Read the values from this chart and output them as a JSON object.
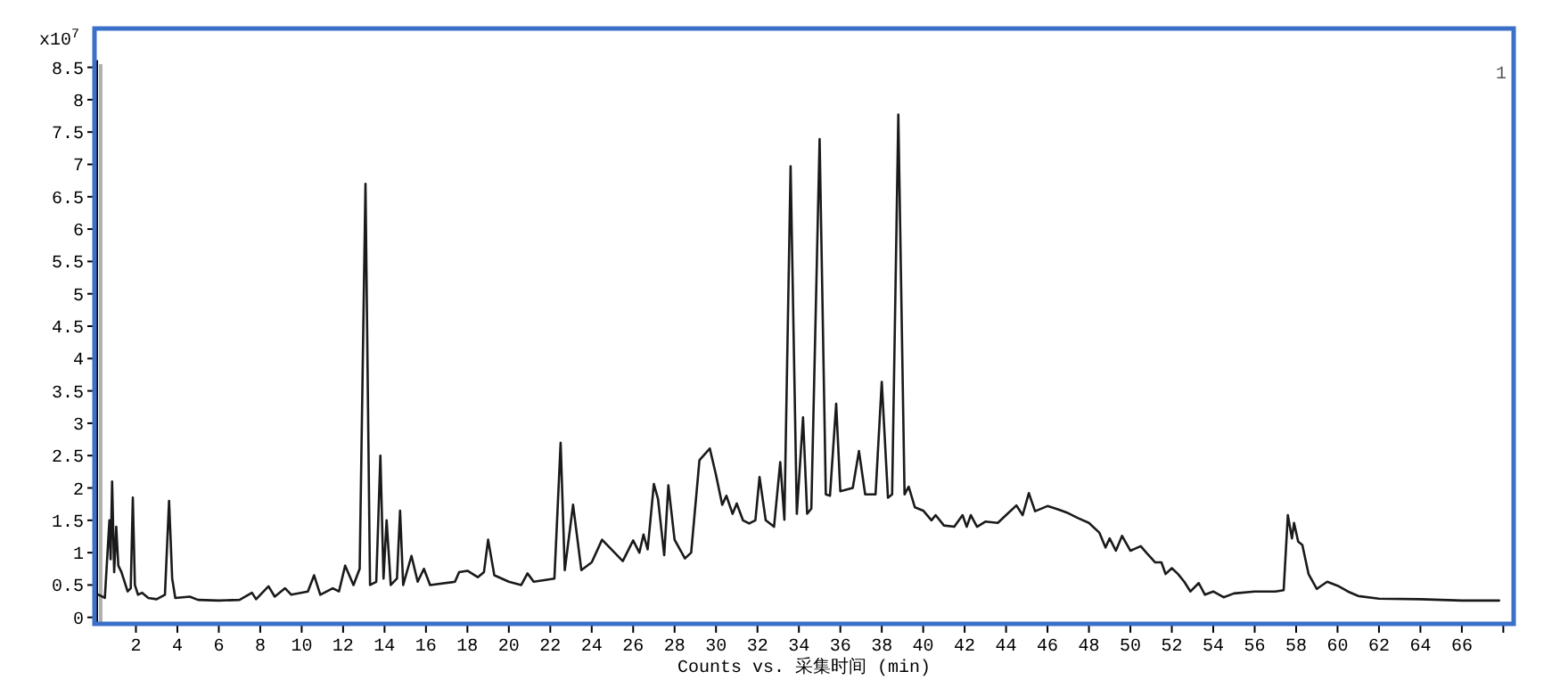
{
  "chart_data": {
    "type": "line",
    "xlabel": "Counts vs. 采集时间 (min)",
    "annotations": [
      "x10$^{7}$",
      "1"
    ],
    "xlim": [
      0,
      68.5
    ],
    "ylim": [
      -0.1,
      9.1
    ],
    "xticks": [
      2,
      4,
      6,
      8,
      10,
      12,
      14,
      16,
      18,
      20,
      22,
      24,
      26,
      28,
      30,
      32,
      34,
      36,
      38,
      40,
      42,
      44,
      46,
      48,
      50,
      52,
      54,
      56,
      58,
      60,
      62,
      64,
      66,
      {
        "value": 68,
        "label": null
      }
    ],
    "yticks": [
      0,
      0.5,
      1,
      1.5,
      2,
      2.5,
      3,
      3.5,
      4,
      4.5,
      5,
      5.5,
      6,
      6.5,
      7,
      7.5,
      8,
      8.5
    ],
    "grid": false,
    "marker": "none",
    "line_style": "solid",
    "ref_lines": [
      {
        "axis": "x",
        "value": 0.3,
        "label": null,
        "color": "#b0b0b0"
      }
    ],
    "series": [
      {
        "color": "#1a1a1a",
        "x": [
          0.2,
          0.5,
          0.72,
          0.78,
          0.85,
          0.95,
          1.05,
          1.15,
          1.3,
          1.6,
          1.75,
          1.85,
          1.95,
          2.1,
          2.3,
          2.6,
          3.0,
          3.4,
          3.6,
          3.75,
          3.9,
          4.6,
          5.0,
          6.0,
          7.0,
          7.6,
          7.8,
          8.4,
          8.7,
          9.2,
          9.5,
          10.3,
          10.6,
          10.9,
          11.5,
          11.8,
          12.1,
          12.5,
          12.8,
          13.08,
          13.3,
          13.6,
          13.8,
          13.95,
          14.1,
          14.3,
          14.6,
          14.75,
          14.9,
          15.3,
          15.6,
          15.9,
          16.2,
          17.4,
          17.6,
          18.0,
          18.5,
          18.8,
          19.0,
          19.3,
          20.0,
          20.6,
          20.9,
          21.2,
          22.2,
          22.5,
          22.7,
          23.1,
          23.5,
          24.0,
          24.5,
          25.5,
          26.0,
          26.3,
          26.5,
          26.7,
          27.0,
          27.2,
          27.5,
          27.7,
          28.0,
          28.5,
          28.8,
          29.2,
          29.7,
          30.0,
          30.3,
          30.5,
          30.8,
          31.0,
          31.3,
          31.6,
          31.9,
          32.1,
          32.4,
          32.8,
          33.1,
          33.3,
          33.6,
          33.9,
          34.2,
          34.4,
          34.6,
          35.0,
          35.3,
          35.5,
          35.8,
          36.0,
          36.6,
          36.9,
          37.2,
          37.7,
          38.0,
          38.3,
          38.5,
          38.8,
          39.1,
          39.3,
          39.6,
          40.0,
          40.4,
          40.6,
          41.0,
          41.5,
          41.9,
          42.1,
          42.3,
          42.6,
          43.0,
          43.6,
          44.0,
          44.5,
          44.8,
          45.1,
          45.4,
          46.0,
          46.5,
          47.0,
          47.5,
          48.0,
          48.5,
          48.8,
          49.0,
          49.3,
          49.6,
          50.0,
          50.5,
          50.8,
          51.2,
          51.5,
          51.7,
          52.0,
          52.3,
          52.6,
          52.9,
          53.3,
          53.6,
          54.0,
          54.5,
          55.0,
          56.0,
          57.0,
          57.4,
          57.6,
          57.8,
          57.9,
          58.1,
          58.3,
          58.6,
          59.0,
          59.5,
          60.0,
          60.5,
          61.0,
          62.0,
          64.0,
          66.0,
          67.8
        ],
        "values": [
          0.35,
          0.3,
          1.5,
          0.9,
          2.1,
          0.7,
          1.4,
          0.8,
          0.7,
          0.4,
          0.45,
          1.85,
          0.5,
          0.35,
          0.38,
          0.3,
          0.28,
          0.35,
          1.8,
          0.6,
          0.3,
          0.32,
          0.27,
          0.26,
          0.27,
          0.38,
          0.28,
          0.48,
          0.32,
          0.45,
          0.35,
          0.4,
          0.65,
          0.35,
          0.45,
          0.4,
          0.8,
          0.5,
          0.75,
          6.7,
          0.5,
          0.55,
          2.5,
          0.6,
          1.5,
          0.5,
          0.6,
          1.65,
          0.5,
          0.95,
          0.55,
          0.75,
          0.5,
          0.55,
          0.7,
          0.72,
          0.62,
          0.7,
          1.2,
          0.65,
          0.55,
          0.5,
          0.68,
          0.55,
          0.6,
          2.7,
          0.73,
          1.74,
          0.73,
          0.85,
          1.2,
          0.87,
          1.19,
          1.0,
          1.28,
          1.05,
          2.06,
          1.83,
          0.96,
          2.04,
          1.2,
          0.91,
          1.0,
          2.43,
          2.61,
          2.2,
          1.74,
          1.88,
          1.6,
          1.76,
          1.5,
          1.45,
          1.5,
          2.17,
          1.5,
          1.4,
          2.4,
          1.51,
          6.97,
          1.6,
          3.09,
          1.6,
          1.68,
          7.39,
          1.9,
          1.88,
          3.3,
          1.95,
          2.0,
          2.57,
          1.9,
          1.9,
          3.64,
          1.85,
          1.9,
          7.77,
          1.9,
          2.02,
          1.7,
          1.65,
          1.5,
          1.58,
          1.42,
          1.4,
          1.58,
          1.4,
          1.58,
          1.4,
          1.48,
          1.46,
          1.58,
          1.73,
          1.58,
          1.92,
          1.64,
          1.72,
          1.67,
          1.61,
          1.53,
          1.46,
          1.31,
          1.08,
          1.22,
          1.03,
          1.26,
          1.03,
          1.1,
          0.99,
          0.85,
          0.85,
          0.67,
          0.76,
          0.67,
          0.55,
          0.4,
          0.53,
          0.35,
          0.4,
          0.31,
          0.37,
          0.4,
          0.4,
          0.42,
          1.58,
          1.22,
          1.46,
          1.17,
          1.12,
          0.67,
          0.44,
          0.55,
          0.49,
          0.4,
          0.33,
          0.29,
          0.28,
          0.26,
          0.26
        ]
      }
    ]
  }
}
